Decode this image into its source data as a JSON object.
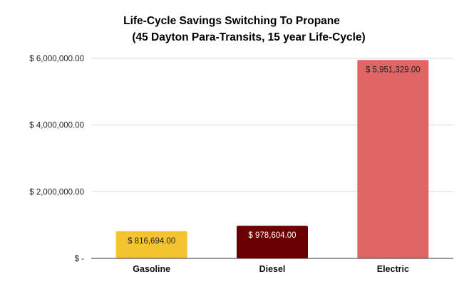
{
  "chart_data": {
    "type": "bar",
    "title_lines": [
      "Life-Cycle Savings Switching To Propane",
      "(45 Dayton Para-Transits, 15 year Life-Cycle)"
    ],
    "xlabel": "",
    "ylabel": "",
    "categories": [
      "Gasoline",
      "Diesel",
      "Electric"
    ],
    "values": [
      816694.0,
      978604.0,
      5951329.0
    ],
    "data_labels": [
      "$ 816,694.00",
      "$ 978,604.00",
      "$ 5,951,329.00"
    ],
    "bar_colors": [
      "#f4c430",
      "#6b0000",
      "#e06666"
    ],
    "label_colors": [
      "#222222",
      "#ffffff",
      "#222222"
    ],
    "ylim": [
      0,
      6000000
    ],
    "yticks": [
      0,
      2000000,
      4000000,
      6000000
    ],
    "ytick_labels": [
      "$ -",
      "$ 2,000,000.00",
      "$ 4,000,000.00",
      "$ 6,000,000.00"
    ],
    "grid": true,
    "grid_color": "#d9d9d9",
    "axis_color": "#333333",
    "legend": "none"
  }
}
